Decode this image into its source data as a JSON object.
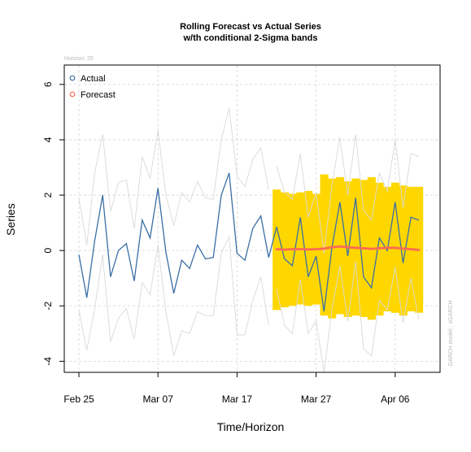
{
  "chart_data": {
    "type": "line",
    "title": "Rolling Forecast vs Actual Series",
    "subtitle": "w/th conditional 2-Sigma bands",
    "xlabel": "Time/Horizon",
    "ylabel": "Series",
    "horizon_note": "Horizon: 20",
    "watermark": "GARCH model : sGARCH",
    "x_start": "Feb 25",
    "x_tick_labels": [
      "Feb 25",
      "Mar 07",
      "Mar 17",
      "Mar 27",
      "Apr 06"
    ],
    "x_tick_days": [
      0,
      10,
      20,
      30,
      40
    ],
    "ylim": [
      -4.4,
      6.7
    ],
    "y_ticks": [
      -4,
      -2,
      0,
      2,
      4,
      6
    ],
    "grid": true,
    "legend_position": "top-left",
    "series": [
      {
        "name": "Actual",
        "color": "#3a6ea5",
        "x_days": [
          0,
          1,
          2,
          3,
          4,
          5,
          6,
          7,
          8,
          9,
          10,
          11,
          12,
          13,
          14,
          15,
          16,
          17,
          18,
          19,
          20,
          21,
          22,
          23,
          24,
          25,
          26,
          27,
          28,
          29,
          30,
          31,
          32,
          33,
          34,
          35,
          36,
          37,
          38,
          39,
          40,
          41,
          42,
          43
        ],
        "values": [
          -0.15,
          -1.7,
          0.35,
          2.0,
          -0.95,
          0.0,
          0.25,
          -1.1,
          1.1,
          0.45,
          2.25,
          -0.05,
          -1.55,
          -0.35,
          -0.65,
          0.2,
          -0.3,
          -0.25,
          2.0,
          2.8,
          -0.1,
          -0.35,
          0.8,
          1.25,
          -0.25,
          0.85,
          -0.3,
          -0.55,
          1.2,
          -0.95,
          -0.2,
          -2.2,
          0.1,
          1.75,
          -0.2,
          1.9,
          -0.95,
          -1.35,
          0.45,
          0.0,
          1.75,
          -0.45,
          1.2,
          1.1
        ]
      },
      {
        "name": "Forecast",
        "color": "#ff6a55",
        "x_days": [
          25,
          26,
          27,
          28,
          29,
          30,
          31,
          32,
          33,
          34,
          35,
          36,
          37,
          38,
          39,
          40,
          41,
          42,
          43
        ],
        "values": [
          0.05,
          0.03,
          0.05,
          0.05,
          0.04,
          0.05,
          0.07,
          0.12,
          0.15,
          0.12,
          0.1,
          0.08,
          0.06,
          0.08,
          0.1,
          0.1,
          0.07,
          0.05,
          0.02
        ]
      }
    ],
    "band": {
      "name": "2-Sigma band",
      "color": "#ffd700",
      "x_days": [
        25,
        26,
        27,
        28,
        29,
        30,
        31,
        32,
        33,
        34,
        35,
        36,
        37,
        38,
        39,
        40,
        41,
        42,
        43
      ],
      "upper": [
        2.2,
        2.1,
        2.05,
        2.1,
        2.15,
        2.05,
        2.75,
        2.6,
        2.65,
        2.5,
        2.6,
        2.55,
        2.65,
        2.45,
        2.3,
        2.45,
        2.35,
        2.3,
        2.3
      ],
      "lower": [
        -2.15,
        -2.05,
        -2.0,
        -1.95,
        -2.0,
        -1.95,
        -2.35,
        -2.45,
        -2.3,
        -2.4,
        -2.35,
        -2.4,
        -2.5,
        -2.35,
        -2.2,
        -2.25,
        -2.35,
        -2.2,
        -2.25
      ]
    },
    "unlabeled_gray_lines": [
      {
        "color": "#d9d9d9",
        "x_days": [
          0,
          1,
          2,
          3,
          4,
          5,
          6,
          7,
          8,
          9,
          10,
          11,
          12,
          13,
          14,
          15,
          16,
          17,
          18,
          19,
          20,
          21,
          22,
          23,
          24
        ],
        "values": [
          1.9,
          0.2,
          2.8,
          4.2,
          1.4,
          2.45,
          2.55,
          0.8,
          3.4,
          2.6,
          4.35,
          2.0,
          0.9,
          2.1,
          1.75,
          2.5,
          1.9,
          1.85,
          4.0,
          5.15,
          2.7,
          2.3,
          3.3,
          3.7,
          2.2
        ]
      },
      {
        "color": "#d9d9d9",
        "x_days": [
          0,
          1,
          2,
          3,
          4,
          5,
          6,
          7,
          8,
          9,
          10,
          11,
          12,
          13,
          14,
          15,
          16,
          17,
          18,
          19,
          20,
          21,
          22,
          23,
          24
        ],
        "values": [
          -2.15,
          -3.6,
          -2.1,
          -0.15,
          -3.3,
          -2.45,
          -2.1,
          -3.2,
          -1.15,
          -1.6,
          0.2,
          -2.2,
          -3.8,
          -2.9,
          -3.0,
          -2.2,
          -2.35,
          -2.35,
          -0.1,
          0.5,
          -3.05,
          -3.05,
          -1.8,
          -0.95,
          -2.7
        ]
      },
      {
        "color": "#d9d9d9",
        "x_days": [
          25,
          26,
          27,
          28,
          29,
          30,
          31,
          32,
          33,
          34,
          35,
          36,
          37,
          38,
          39,
          40,
          41,
          42,
          43
        ],
        "values": [
          3.05,
          2.1,
          1.85,
          3.5,
          1.2,
          2.1,
          -0.1,
          2.35,
          4.1,
          2.0,
          4.2,
          1.45,
          1.1,
          2.8,
          2.15,
          4.0,
          1.55,
          3.5,
          3.4
        ]
      },
      {
        "color": "#d9d9d9",
        "x_days": [
          25,
          26,
          27,
          28,
          29,
          30,
          31,
          32,
          33,
          34,
          35,
          36,
          37,
          38,
          39,
          40,
          41,
          42,
          43
        ],
        "values": [
          -1.4,
          -2.7,
          -3.0,
          -1.05,
          -3.0,
          -2.55,
          -4.4,
          -2.15,
          -0.55,
          -2.55,
          -0.4,
          -3.55,
          -3.8,
          -1.8,
          -2.15,
          -0.6,
          -2.6,
          -1.0,
          -2.5
        ]
      }
    ]
  }
}
